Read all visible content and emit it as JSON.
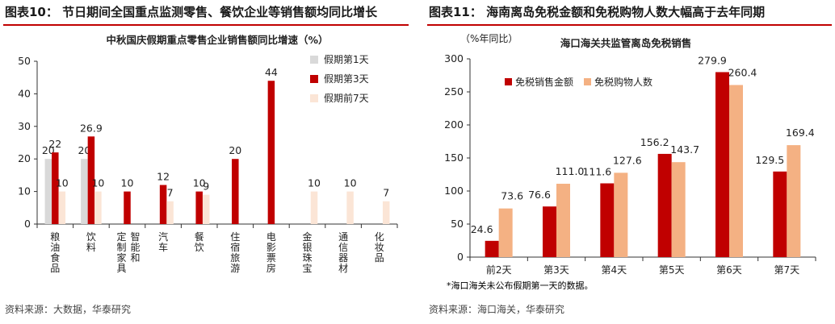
{
  "left": {
    "figure_title": "图表10：  节日期间全国重点监测零售、餐饮企业等销售额均同比增长",
    "source": "资料来源：大数据，华泰研究"
  },
  "right": {
    "figure_title": "图表11：  海南离岛免税金额和免税购物人数大幅高于去年同期",
    "note": "*海口海关未公布假期第一天的数据。",
    "source": "资料来源：海口海关，华泰研究"
  },
  "chart_data": [
    {
      "type": "bar",
      "title": "中秋国庆假期重点零售企业销售额同比增速（%）",
      "categories": [
        "粮油食品",
        "饮料",
        "智能和定制家具",
        "汽车",
        "餐饮",
        "住宿旅游",
        "电影票房",
        "金银珠宝",
        "通信器材",
        "化妆品"
      ],
      "category_lines": [
        [
          "粮",
          "油",
          "食",
          "品"
        ],
        [
          "饮",
          "料"
        ],
        [
          "定",
          "制",
          "家",
          "具|智",
          "能",
          "和"
        ],
        [
          "汽",
          "车"
        ],
        [
          "餐",
          "饮"
        ],
        [
          "住",
          "宿",
          "旅",
          "游"
        ],
        [
          "电",
          "影",
          "票",
          "房"
        ],
        [
          "金",
          "银",
          "珠",
          "宝"
        ],
        [
          "通",
          "信",
          "器",
          "材"
        ],
        [
          "化",
          "妆",
          "品"
        ]
      ],
      "series": [
        {
          "name": "假期第1天",
          "color": "#d9d9d9",
          "values": [
            20,
            20,
            null,
            null,
            null,
            null,
            null,
            null,
            null,
            null
          ]
        },
        {
          "name": "假期第3天",
          "color": "#c00000",
          "values": [
            22,
            26.9,
            10,
            12,
            10,
            20,
            44,
            null,
            null,
            null
          ]
        },
        {
          "name": "假期前7天",
          "color": "#fbe5d6",
          "values": [
            10,
            10,
            null,
            7,
            9,
            null,
            null,
            10,
            10,
            7
          ]
        }
      ],
      "ylim": [
        0,
        50
      ],
      "yticks": [
        0,
        10,
        20,
        30,
        40,
        50
      ],
      "legend_position": "top-right",
      "grid": false
    },
    {
      "type": "bar",
      "title": "海口海关共监管离岛免税销售",
      "ylabel": "（%年同比）",
      "categories": [
        "前2天",
        "第3天",
        "第4天",
        "第5天",
        "第6天",
        "第7天"
      ],
      "series": [
        {
          "name": "免税销售金额",
          "color": "#c00000",
          "values": [
            24.6,
            76.6,
            111.6,
            156.2,
            279.9,
            129.5
          ]
        },
        {
          "name": "免税购物人数",
          "color": "#f4b183",
          "values": [
            73.6,
            111.0,
            127.6,
            143.7,
            260.4,
            169.4
          ]
        }
      ],
      "value_labels": [
        [
          "24.6",
          "76.6",
          "111.6",
          "156.2",
          "279.9",
          "129.5"
        ],
        [
          "73.6",
          "111.0",
          "127.6",
          "143.7",
          "260.4",
          "169.4"
        ]
      ],
      "ylim": [
        0,
        300
      ],
      "yticks": [
        0,
        50,
        100,
        150,
        200,
        250,
        300
      ],
      "legend_position": "top-left",
      "grid": false
    }
  ]
}
